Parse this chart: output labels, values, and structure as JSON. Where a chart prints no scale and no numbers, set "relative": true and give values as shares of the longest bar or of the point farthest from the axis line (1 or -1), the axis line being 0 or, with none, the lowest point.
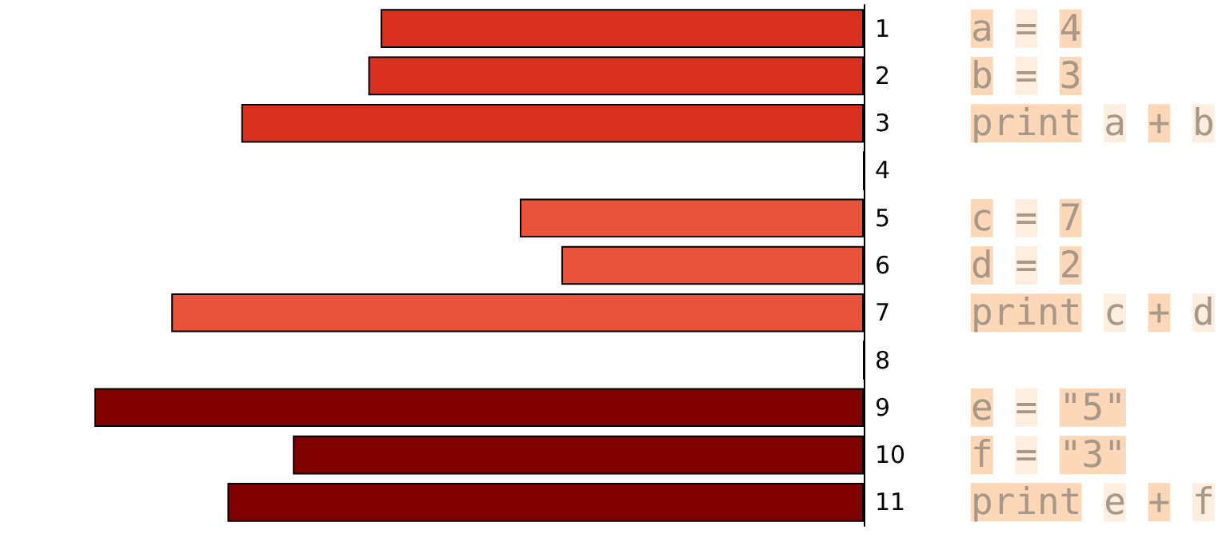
{
  "chart_data": {
    "type": "bar",
    "orientation": "horizontal",
    "relative": true,
    "categories": [
      "1",
      "2",
      "3",
      "4",
      "5",
      "6",
      "7",
      "8",
      "9",
      "10",
      "11"
    ],
    "values": [
      -0.628,
      -0.644,
      -0.809,
      0,
      -0.447,
      -0.393,
      -0.9,
      0,
      -1,
      -0.742,
      -0.827
    ],
    "colors": [
      "#d93020",
      "#d93020",
      "#d93020",
      "#d93020",
      "#e9533a",
      "#e9533a",
      "#e9533a",
      "#e9533a",
      "#800000",
      "#800000",
      "#800000"
    ],
    "annotations": [
      "a = 4",
      "b = 3",
      "print a + b",
      "c = 7",
      "d = 2",
      "print c + d",
      "e = \"5\"",
      "f = \"3\"",
      "print e + f"
    ]
  }
}
